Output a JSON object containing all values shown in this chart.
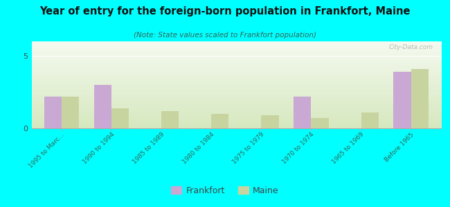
{
  "title": "Year of entry for the foreign-born population in Frankfort, Maine",
  "subtitle": "(Note: State values scaled to Frankfort population)",
  "categories": [
    "1995 to Marc...",
    "1990 to 1994",
    "1985 to 1989",
    "1980 to 1984",
    "1975 to 1979",
    "1970 to 1974",
    "1965 to 1969",
    "Before 1965"
  ],
  "frankfort_values": [
    2.2,
    3.0,
    0.0,
    0.0,
    0.0,
    2.2,
    0.0,
    3.9
  ],
  "maine_values": [
    2.2,
    1.4,
    1.2,
    1.0,
    0.9,
    0.7,
    1.1,
    4.1
  ],
  "frankfort_color": "#c9a8d4",
  "maine_color": "#c8d4a0",
  "background_color": "#00ffff",
  "ylim": [
    0,
    6
  ],
  "yticks": [
    0,
    5
  ],
  "bar_width": 0.35,
  "legend_labels": [
    "Frankfort",
    "Maine"
  ],
  "watermark": "City-Data.com",
  "plot_bg_color_top": "#f0f5e8",
  "plot_bg_color_bottom": "#d8e8c0"
}
